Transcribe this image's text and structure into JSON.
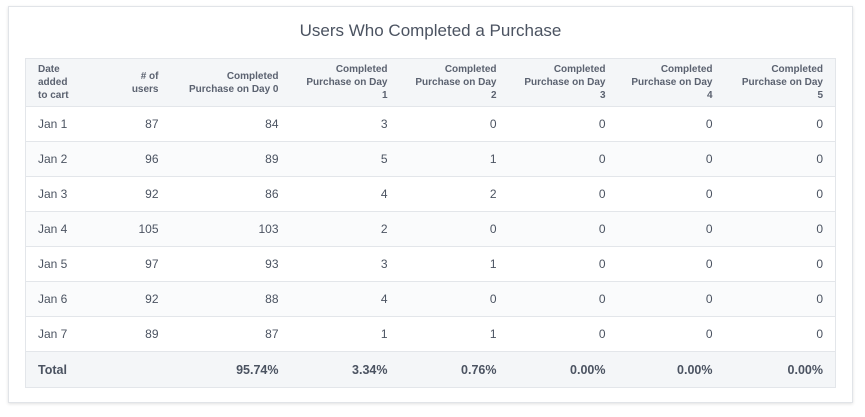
{
  "title": "Users Who Completed a Purchase",
  "table": {
    "headers": [
      [
        "Date added",
        "to cart"
      ],
      [
        "# of users"
      ],
      [
        "Completed",
        "Purchase on Day 0"
      ],
      [
        "Completed",
        "Purchase on Day 1"
      ],
      [
        "Completed",
        "Purchase on Day 2"
      ],
      [
        "Completed",
        "Purchase on Day 3"
      ],
      [
        "Completed",
        "Purchase on Day 4"
      ],
      [
        "Completed",
        "Purchase on Day 5"
      ]
    ],
    "rows": [
      [
        "Jan 1",
        87,
        84,
        3,
        0,
        0,
        0,
        0
      ],
      [
        "Jan 2",
        96,
        89,
        5,
        1,
        0,
        0,
        0
      ],
      [
        "Jan 3",
        92,
        86,
        4,
        2,
        0,
        0,
        0
      ],
      [
        "Jan 4",
        105,
        103,
        2,
        0,
        0,
        0,
        0
      ],
      [
        "Jan 5",
        97,
        93,
        3,
        1,
        0,
        0,
        0
      ],
      [
        "Jan 6",
        92,
        88,
        4,
        0,
        0,
        0,
        0
      ],
      [
        "Jan 7",
        89,
        87,
        1,
        1,
        0,
        0,
        0
      ]
    ],
    "total": {
      "label": "Total",
      "cells": [
        "95.74%",
        "3.34%",
        "0.76%",
        "0.00%",
        "0.00%",
        "0.00%"
      ]
    }
  }
}
